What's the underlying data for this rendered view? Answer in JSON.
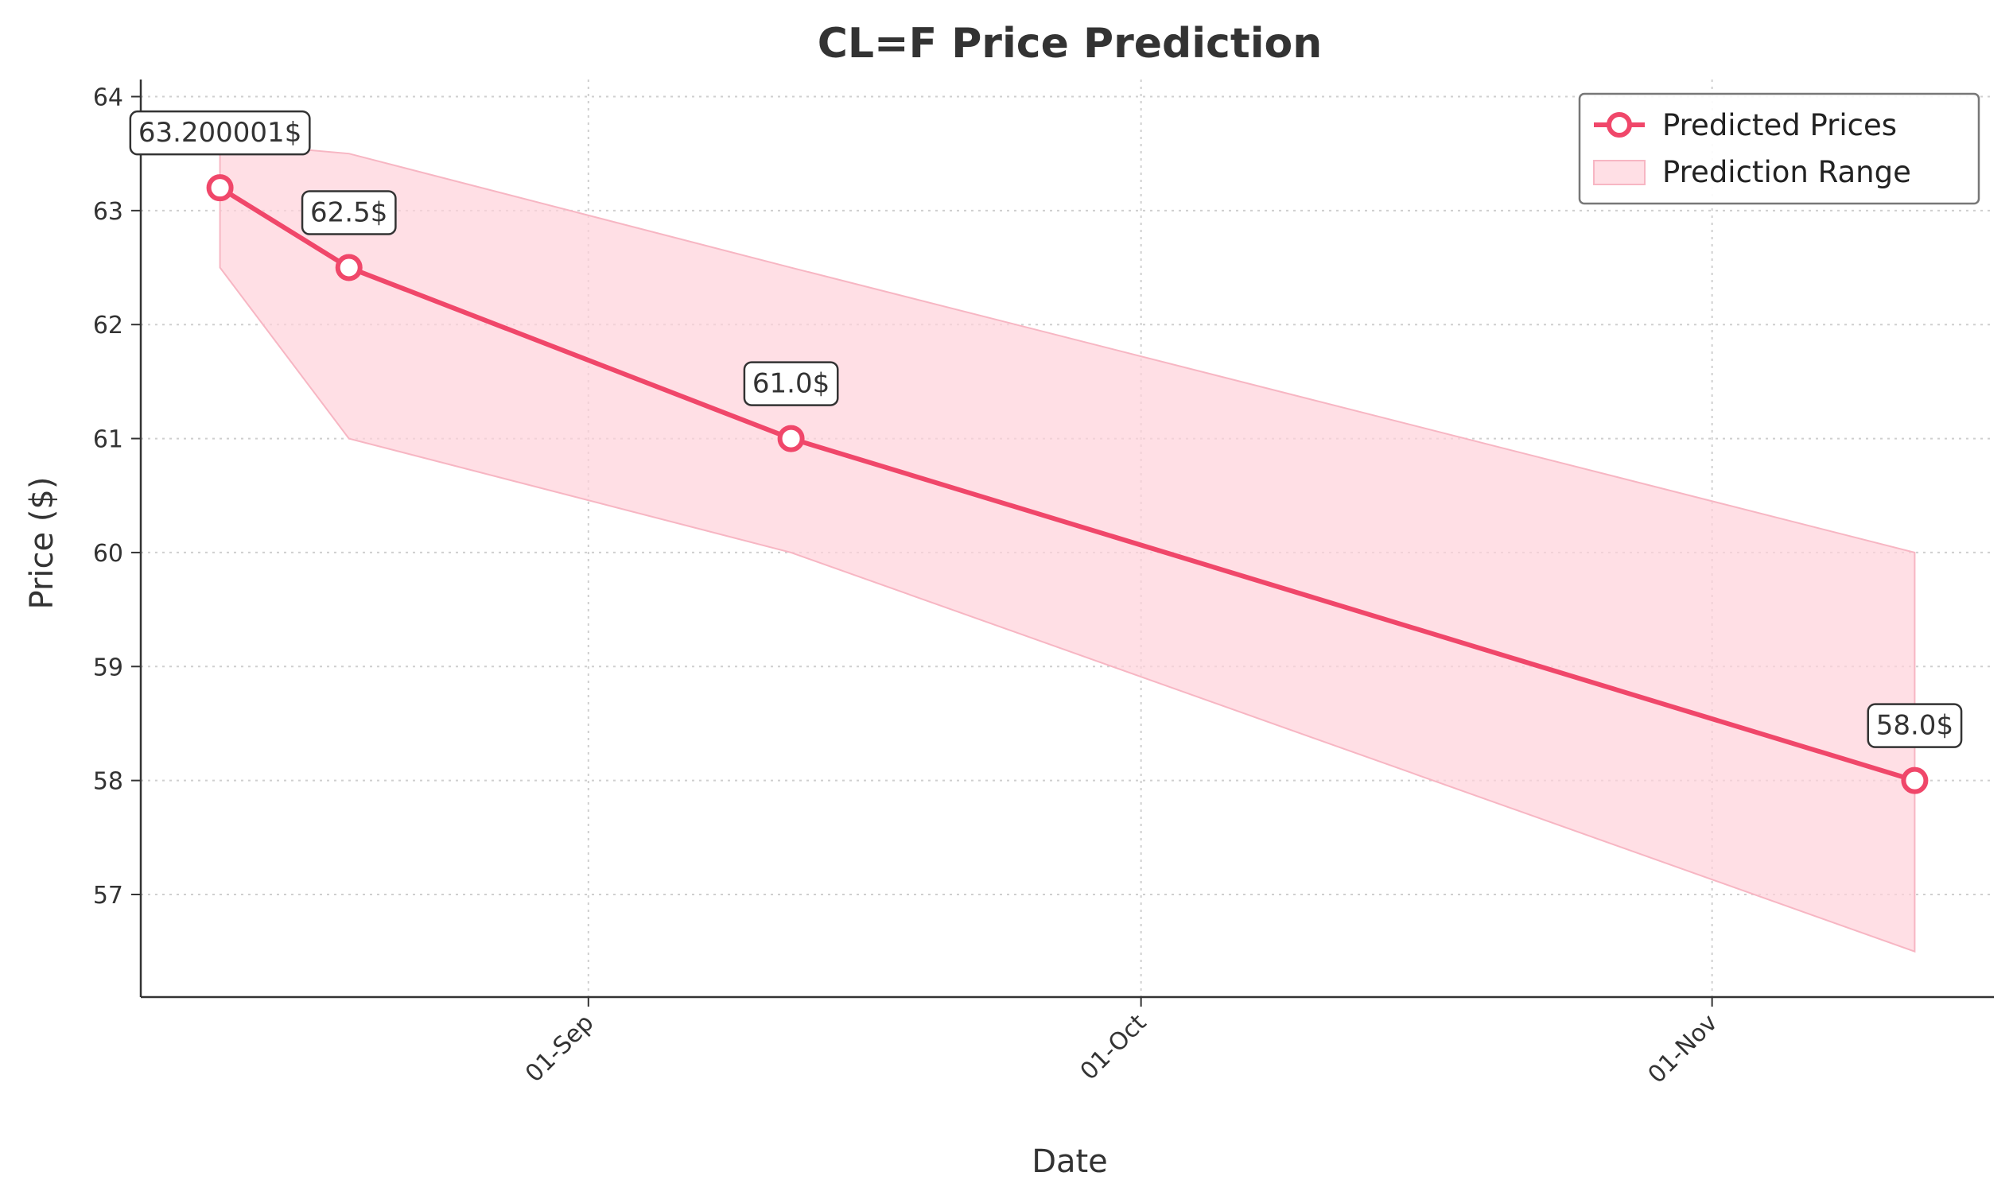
{
  "chart_data": {
    "type": "line",
    "title": "CL=F Price Prediction",
    "xlabel": "Date",
    "ylabel": "Price ($)",
    "x_ticks": [
      "01-Sep",
      "01-Oct",
      "01-Nov"
    ],
    "y_ticks": [
      57,
      58,
      59,
      60,
      61,
      62,
      63,
      64
    ],
    "ylim": [
      56.1,
      64.15
    ],
    "grid": true,
    "legend_position": "top-right",
    "series": [
      {
        "name": "Predicted Prices",
        "x": [
          "2025-08-12",
          "2025-08-19",
          "2025-09-12",
          "2025-11-12"
        ],
        "values": [
          63.200001,
          62.5,
          61.0,
          58.0
        ],
        "labels": [
          "63.200001$",
          "62.5$",
          "61.0$",
          "58.0$"
        ],
        "color": "#f0476a"
      },
      {
        "name": "Prediction Range",
        "type": "band",
        "x": [
          "2025-08-12",
          "2025-08-19",
          "2025-09-12",
          "2025-11-12"
        ],
        "lower": [
          62.5,
          61.0,
          60.0,
          56.5
        ],
        "upper": [
          63.6,
          63.5,
          62.5,
          60.0
        ],
        "color": "#ffd1da"
      }
    ]
  }
}
